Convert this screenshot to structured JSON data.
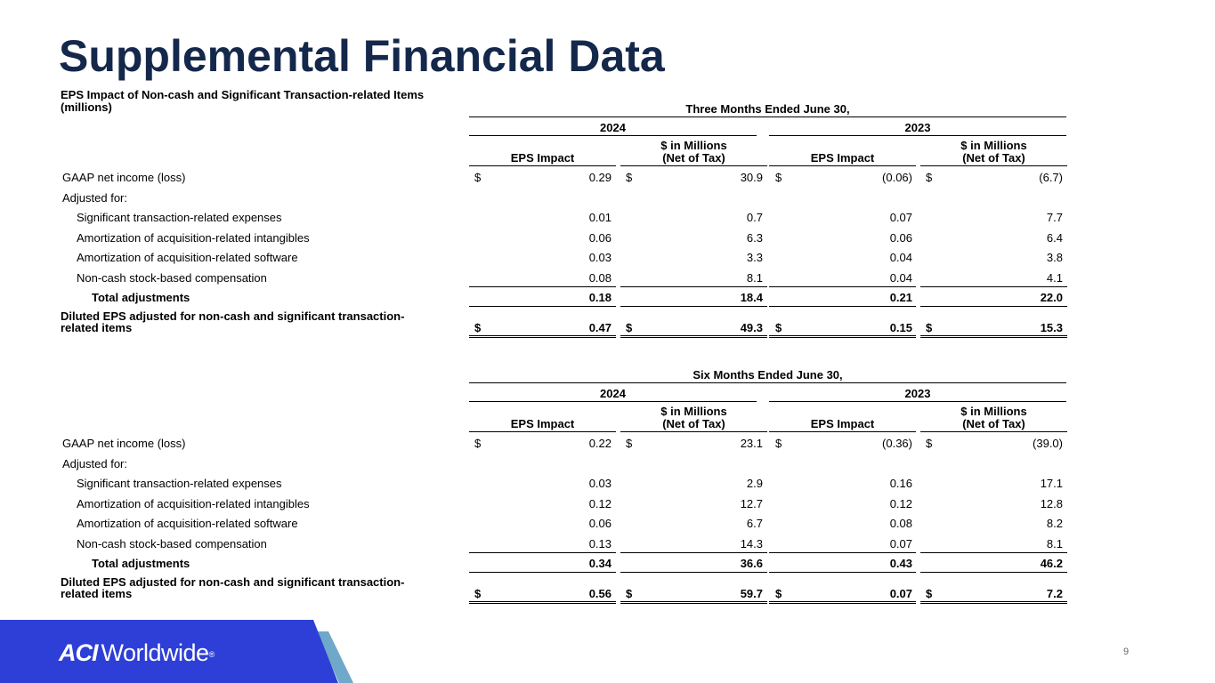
{
  "title": "Supplemental Financial Data",
  "subtitle_line1": "EPS Impact of Non-cash and Significant Transaction-related Items",
  "subtitle_line2": "(millions)",
  "col_eps": "EPS Impact",
  "col_mil_line1": "$ in Millions",
  "col_mil_line2": "(Net of Tax)",
  "year_a": "2024",
  "year_b": "2023",
  "dollar": "$",
  "labels": {
    "gaap": "GAAP net income (loss)",
    "adjusted": "Adjusted for:",
    "sig": "Significant transaction-related expenses",
    "amort_int": "Amortization of acquisition-related intangibles",
    "amort_sw": "Amortization of acquisition-related software",
    "stock": "Non-cash stock-based compensation",
    "total": "Total adjustments",
    "diluted1": "Diluted EPS adjusted for non-cash and significant transaction-",
    "diluted2": "related items"
  },
  "three": {
    "period": "Three Months Ended June 30,",
    "gaap": [
      "0.29",
      "30.9",
      "(0.06)",
      "(6.7)"
    ],
    "sig": [
      "0.01",
      "0.7",
      "0.07",
      "7.7"
    ],
    "amort_int": [
      "0.06",
      "6.3",
      "0.06",
      "6.4"
    ],
    "amort_sw": [
      "0.03",
      "3.3",
      "0.04",
      "3.8"
    ],
    "stock": [
      "0.08",
      "8.1",
      "0.04",
      "4.1"
    ],
    "total": [
      "0.18",
      "18.4",
      "0.21",
      "22.0"
    ],
    "diluted": [
      "0.47",
      "49.3",
      "0.15",
      "15.3"
    ]
  },
  "six": {
    "period": "Six Months Ended June 30,",
    "gaap": [
      "0.22",
      "23.1",
      "(0.36)",
      "(39.0)"
    ],
    "sig": [
      "0.03",
      "2.9",
      "0.16",
      "17.1"
    ],
    "amort_int": [
      "0.12",
      "12.7",
      "0.12",
      "12.8"
    ],
    "amort_sw": [
      "0.06",
      "6.7",
      "0.08",
      "8.2"
    ],
    "stock": [
      "0.13",
      "14.3",
      "0.07",
      "8.1"
    ],
    "total": [
      "0.34",
      "36.6",
      "0.43",
      "46.2"
    ],
    "diluted": [
      "0.56",
      "59.7",
      "0.07",
      "7.2"
    ]
  },
  "footer": {
    "logo_aci": "ACI",
    "logo_worldwide": "Worldwide",
    "logo_reg": "®",
    "page_number": "9",
    "brand_color": "#2d3fd6",
    "accent_color": "#6fa8c8"
  }
}
